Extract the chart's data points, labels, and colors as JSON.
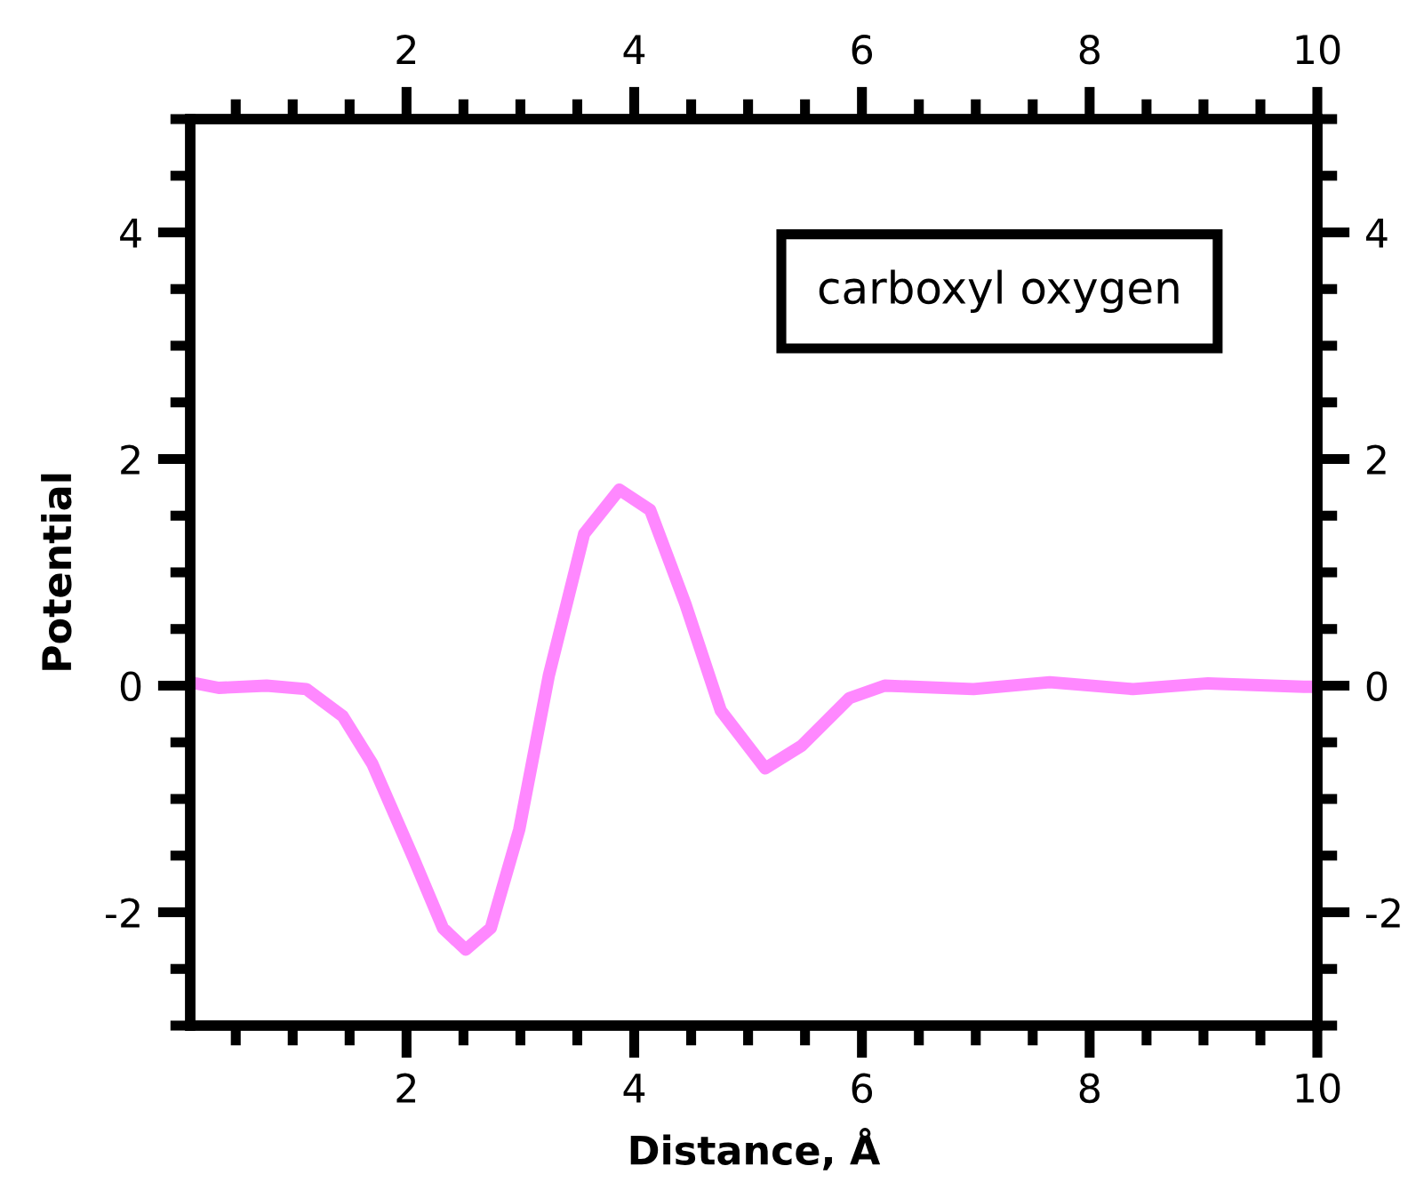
{
  "chart_data": {
    "type": "line",
    "xlabel": "Distance, Å",
    "ylabel": "Potential",
    "annotations": [
      "carboxyl oxygen"
    ],
    "x": [
      0.15,
      0.35,
      0.77,
      1.12,
      1.44,
      1.7,
      2.06,
      2.32,
      2.52,
      2.74,
      2.99,
      3.25,
      3.56,
      3.87,
      4.14,
      4.45,
      4.76,
      5.15,
      5.47,
      5.89,
      6.2,
      6.98,
      7.65,
      8.38,
      9.04,
      9.88,
      10
    ],
    "series": [
      {
        "color": "#ff88ff",
        "values": [
          0.02,
          -0.02,
          0.0,
          -0.03,
          -0.27,
          -0.69,
          -1.52,
          -2.14,
          -2.33,
          -2.14,
          -1.27,
          0.09,
          1.34,
          1.73,
          1.55,
          0.72,
          -0.22,
          -0.73,
          -0.53,
          -0.11,
          0.0,
          -0.03,
          0.03,
          -0.03,
          0.02,
          -0.01,
          -0.01
        ]
      }
    ],
    "xlim": [
      0.1,
      10
    ],
    "ylim": [
      -3,
      5
    ],
    "xticks": [
      {
        "value": 0.5,
        "label": null
      },
      {
        "value": 1,
        "label": null
      },
      {
        "value": 1.5,
        "label": null
      },
      2,
      {
        "value": 2.5,
        "label": null
      },
      {
        "value": 3,
        "label": null
      },
      {
        "value": 3.5,
        "label": null
      },
      4,
      {
        "value": 4.5,
        "label": null
      },
      {
        "value": 5,
        "label": null
      },
      {
        "value": 5.5,
        "label": null
      },
      6,
      {
        "value": 6.5,
        "label": null
      },
      {
        "value": 7,
        "label": null
      },
      {
        "value": 7.5,
        "label": null
      },
      8,
      {
        "value": 8.5,
        "label": null
      },
      {
        "value": 9,
        "label": null
      },
      {
        "value": 9.5,
        "label": null
      },
      10
    ],
    "x2lim": [
      0.1,
      10
    ],
    "x2ticks": [
      {
        "value": 0.5,
        "label": null
      },
      {
        "value": 1,
        "label": null
      },
      {
        "value": 1.5,
        "label": null
      },
      2,
      {
        "value": 2.5,
        "label": null
      },
      {
        "value": 3,
        "label": null
      },
      {
        "value": 3.5,
        "label": null
      },
      4,
      {
        "value": 4.5,
        "label": null
      },
      {
        "value": 5,
        "label": null
      },
      {
        "value": 5.5,
        "label": null
      },
      6,
      {
        "value": 6.5,
        "label": null
      },
      {
        "value": 7,
        "label": null
      },
      {
        "value": 7.5,
        "label": null
      },
      8,
      {
        "value": 8.5,
        "label": null
      },
      {
        "value": 9,
        "label": null
      },
      {
        "value": 9.5,
        "label": null
      },
      10
    ],
    "yticks": [
      {
        "value": -3,
        "label": null
      },
      {
        "value": -2.5,
        "label": null
      },
      {
        "value": -2,
        "label": "-2"
      },
      {
        "value": -1.5,
        "label": null
      },
      {
        "value": -1,
        "label": null
      },
      {
        "value": -0.5,
        "label": null
      },
      0,
      {
        "value": 0.5,
        "label": null
      },
      {
        "value": 1,
        "label": null
      },
      {
        "value": 1.5,
        "label": null
      },
      2,
      {
        "value": 2.5,
        "label": null
      },
      {
        "value": 3,
        "label": null
      },
      {
        "value": 3.5,
        "label": null
      },
      4,
      {
        "value": 4.5,
        "label": null
      },
      {
        "value": 5,
        "label": null
      }
    ],
    "y2lim": [
      -3,
      5
    ],
    "y2ticks": [
      {
        "value": -3,
        "label": null
      },
      {
        "value": -2.5,
        "label": null
      },
      {
        "value": -2,
        "label": "-2"
      },
      {
        "value": -1.5,
        "label": null
      },
      {
        "value": -1,
        "label": null
      },
      {
        "value": -0.5,
        "label": null
      },
      0,
      {
        "value": 0.5,
        "label": null
      },
      {
        "value": 1,
        "label": null
      },
      {
        "value": 1.5,
        "label": null
      },
      2,
      {
        "value": 2.5,
        "label": null
      },
      {
        "value": 3,
        "label": null
      },
      {
        "value": 3.5,
        "label": null
      },
      4,
      {
        "value": 4.5,
        "label": null
      },
      {
        "value": 5,
        "label": null
      }
    ],
    "grid": false,
    "legend": false,
    "marker": "none",
    "line_style": "solid"
  }
}
